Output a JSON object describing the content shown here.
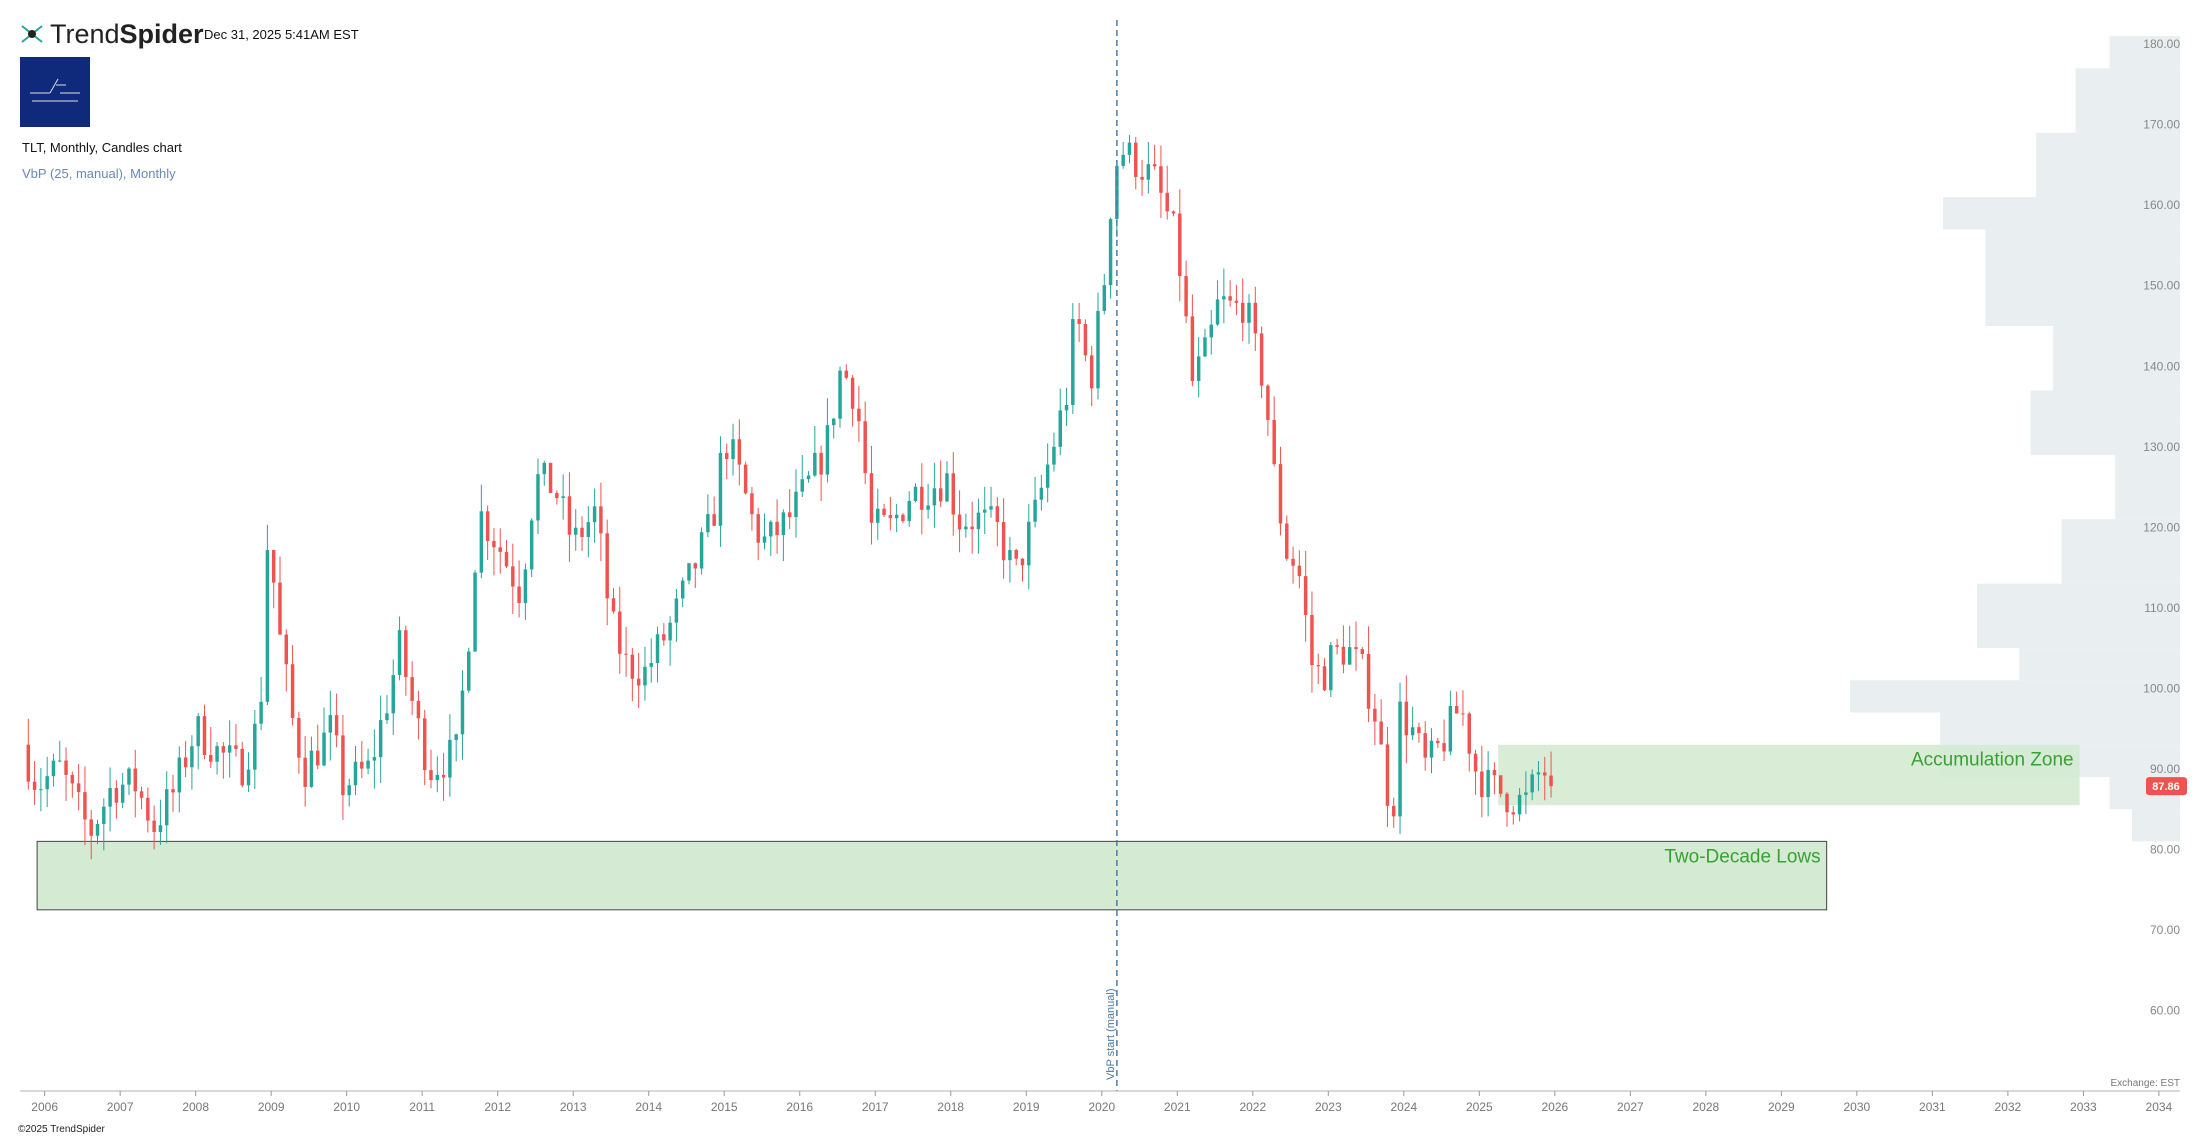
{
  "header": {
    "brand_regular": "Trend",
    "brand_bold_part": "Spider",
    "timestamp": "Dec 31, 2025 5:41AM EST",
    "avatar_icon": "brand-avatar-icon"
  },
  "chart_title": "TLT, Monthly, Candles chart",
  "indicator_title": "VbP (25, manual), Monthly",
  "copyright": "©2025 TrendSpider",
  "colors": {
    "up": "#26a69a",
    "down": "#ef5350",
    "zone_fill": "#d4ead2",
    "zone_text": "#3aa035",
    "vbp_fill": "#e9eef0",
    "vbp_line": "#4a7ba7",
    "price_badge": "#ef5350"
  },
  "chart_data": {
    "type": "candlestick",
    "symbol": "TLT",
    "interval": "Monthly",
    "ylim": [
      50,
      183
    ],
    "xlim": [
      2005.7,
      2034.2
    ],
    "y_ticks": [
      "60.00",
      "70.00",
      "80.00",
      "90.00",
      "100.00",
      "110.00",
      "120.00",
      "130.00",
      "140.00",
      "150.00",
      "160.00",
      "170.00",
      "180.00"
    ],
    "x_ticks": [
      "2006",
      "2007",
      "2008",
      "2009",
      "2010",
      "2011",
      "2012",
      "2013",
      "2014",
      "2015",
      "2016",
      "2017",
      "2018",
      "2019",
      "2020",
      "2021",
      "2022",
      "2023",
      "2024",
      "2025",
      "2026",
      "2027",
      "2028",
      "2029",
      "2030",
      "2031",
      "2032",
      "2033",
      "2034"
    ],
    "exchange_label": "Exchange: EST",
    "last_price": "87.86",
    "vbp_start_label": "VbP start (manual)",
    "vbp_start_x": 2020.2,
    "price_path": [
      [
        2005.7,
        93
      ],
      [
        2005.9,
        88
      ],
      [
        2006.2,
        90
      ],
      [
        2006.45,
        85
      ],
      [
        2006.6,
        82
      ],
      [
        2006.9,
        88
      ],
      [
        2007.2,
        88
      ],
      [
        2007.45,
        83
      ],
      [
        2007.7,
        87
      ],
      [
        2008.0,
        95
      ],
      [
        2008.3,
        92
      ],
      [
        2008.6,
        90
      ],
      [
        2008.85,
        96
      ],
      [
        2008.96,
        120
      ],
      [
        2009.1,
        107
      ],
      [
        2009.3,
        95
      ],
      [
        2009.45,
        90
      ],
      [
        2009.8,
        95
      ],
      [
        2009.95,
        88
      ],
      [
        2010.3,
        90
      ],
      [
        2010.55,
        99
      ],
      [
        2010.7,
        105
      ],
      [
        2010.95,
        95
      ],
      [
        2011.1,
        90
      ],
      [
        2011.45,
        92
      ],
      [
        2011.6,
        105
      ],
      [
        2011.75,
        122
      ],
      [
        2012.0,
        118
      ],
      [
        2012.3,
        112
      ],
      [
        2012.5,
        126
      ],
      [
        2012.75,
        125
      ],
      [
        2013.0,
        118
      ],
      [
        2013.3,
        122
      ],
      [
        2013.5,
        108
      ],
      [
        2013.7,
        103
      ],
      [
        2013.95,
        102
      ],
      [
        2014.3,
        108
      ],
      [
        2014.6,
        115
      ],
      [
        2014.85,
        121
      ],
      [
        2015.0,
        131
      ],
      [
        2015.15,
        128
      ],
      [
        2015.4,
        120
      ],
      [
        2015.55,
        118
      ],
      [
        2015.85,
        121
      ],
      [
        2016.1,
        125
      ],
      [
        2016.35,
        130
      ],
      [
        2016.55,
        140
      ],
      [
        2016.75,
        136
      ],
      [
        2016.95,
        120
      ],
      [
        2017.2,
        120
      ],
      [
        2017.45,
        124
      ],
      [
        2017.7,
        125
      ],
      [
        2017.95,
        126
      ],
      [
        2018.1,
        121
      ],
      [
        2018.35,
        121
      ],
      [
        2018.6,
        120
      ],
      [
        2018.85,
        114
      ],
      [
        2019.1,
        121
      ],
      [
        2019.35,
        130
      ],
      [
        2019.55,
        137
      ],
      [
        2019.65,
        147
      ],
      [
        2019.85,
        138
      ],
      [
        2020.05,
        152
      ],
      [
        2020.15,
        164
      ],
      [
        2020.25,
        167
      ],
      [
        2020.5,
        165
      ],
      [
        2020.7,
        163
      ],
      [
        2020.9,
        158
      ],
      [
        2021.0,
        155
      ],
      [
        2021.2,
        138
      ],
      [
        2021.4,
        142
      ],
      [
        2021.55,
        148
      ],
      [
        2021.75,
        147
      ],
      [
        2021.9,
        148
      ],
      [
        2022.0,
        143
      ],
      [
        2022.15,
        138
      ],
      [
        2022.3,
        125
      ],
      [
        2022.45,
        117
      ],
      [
        2022.6,
        115
      ],
      [
        2022.8,
        102
      ],
      [
        2022.95,
        102
      ],
      [
        2023.05,
        104
      ],
      [
        2023.25,
        105
      ],
      [
        2023.45,
        102
      ],
      [
        2023.6,
        98
      ],
      [
        2023.75,
        89
      ],
      [
        2023.85,
        84
      ],
      [
        2023.95,
        97
      ],
      [
        2024.1,
        95
      ],
      [
        2024.3,
        90
      ],
      [
        2024.55,
        94
      ],
      [
        2024.75,
        98
      ],
      [
        2024.95,
        90
      ],
      [
        2025.1,
        88
      ],
      [
        2025.3,
        87
      ],
      [
        2025.5,
        86
      ],
      [
        2025.65,
        86
      ],
      [
        2025.75,
        89
      ],
      [
        2025.85,
        90
      ],
      [
        2025.95,
        87.86
      ]
    ],
    "candle_height_frac": 0.5,
    "zones": [
      {
        "label": "Two-Decade Lows",
        "x0": 2005.9,
        "x1": 2029.6,
        "y_low": 72.5,
        "y_high": 81
      },
      {
        "label": "Accumulation Zone",
        "x0": 2025.25,
        "x1": 2032.95,
        "y_low": 85.5,
        "y_high": 93
      }
    ],
    "vbp_profile": {
      "bucket_low": 81,
      "bucket_size": 4,
      "volumes": [
        170,
        250,
        850,
        850,
        1170,
        570,
        720,
        720,
        420,
        420,
        230,
        230,
        530,
        530,
        450,
        450,
        690,
        690,
        690,
        840,
        510,
        510,
        370,
        370,
        250
      ],
      "max_volume": 1170
    }
  }
}
